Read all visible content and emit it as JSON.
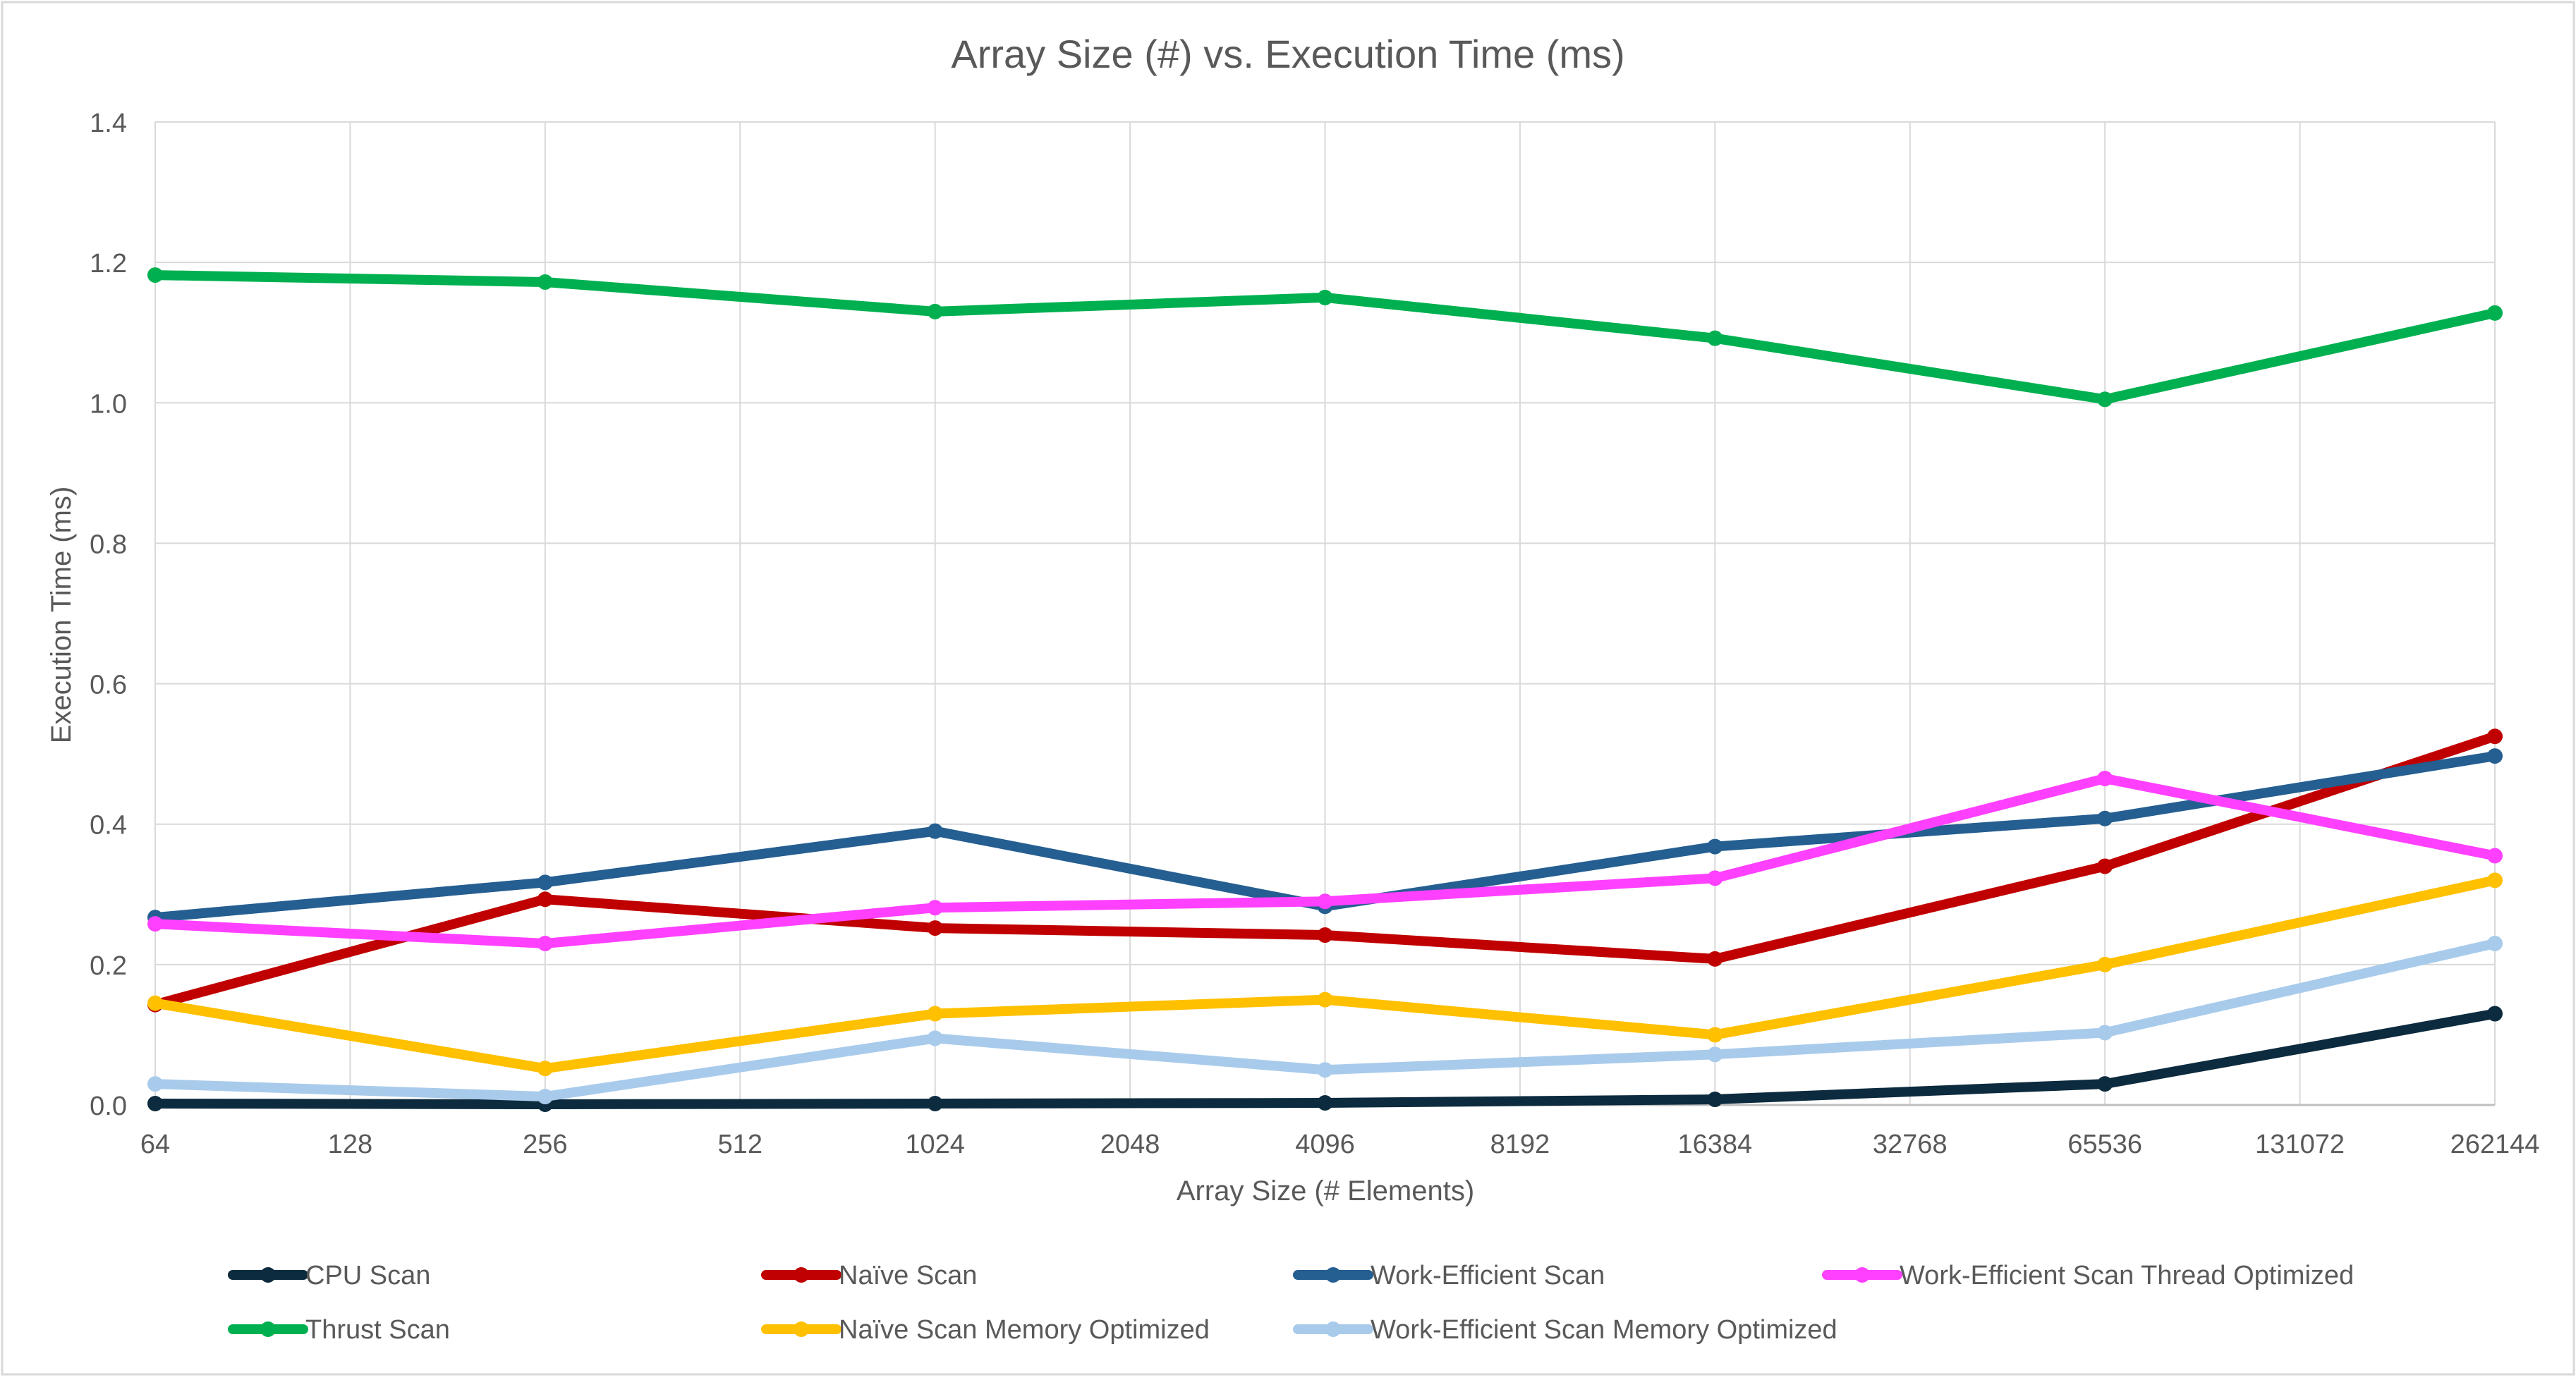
{
  "chart_data": {
    "type": "line",
    "title": "Array Size (#) vs. Execution Time (ms)",
    "xlabel": "Array Size (# Elements)",
    "ylabel": "Execution Time (ms)",
    "categories": [
      "64",
      "128",
      "256",
      "512",
      "1024",
      "2048",
      "4096",
      "8192",
      "16384",
      "32768",
      "65536",
      "131072",
      "262144"
    ],
    "ylim": [
      0,
      1.4
    ],
    "yticks": [
      "0.0",
      "0.2",
      "0.4",
      "0.6",
      "0.8",
      "1.0",
      "1.2",
      "1.4"
    ],
    "grid": true,
    "legend_position": "bottom",
    "series": [
      {
        "name": "CPU Scan",
        "color": "#0d2b3e",
        "x": [
          "64",
          "256",
          "1024",
          "4096",
          "16384",
          "65536",
          "262144"
        ],
        "values": [
          0.002,
          0.001,
          0.002,
          0.003,
          0.008,
          0.03,
          0.13
        ]
      },
      {
        "name": "Naïve Scan",
        "color": "#c00000",
        "x": [
          "64",
          "256",
          "1024",
          "4096",
          "16384",
          "65536",
          "262144"
        ],
        "values": [
          0.143,
          0.293,
          0.252,
          0.242,
          0.208,
          0.34,
          0.525
        ]
      },
      {
        "name": "Work-Efficient Scan",
        "color": "#255e91",
        "x": [
          "64",
          "256",
          "1024",
          "4096",
          "16384",
          "65536",
          "262144"
        ],
        "values": [
          0.267,
          0.317,
          0.39,
          0.283,
          0.368,
          0.408,
          0.497
        ]
      },
      {
        "name": "Work-Efficient Scan Thread Optimized",
        "color": "#ff40ff",
        "x": [
          "64",
          "256",
          "1024",
          "4096",
          "16384",
          "65536",
          "262144"
        ],
        "values": [
          0.258,
          0.23,
          0.281,
          0.29,
          0.323,
          0.465,
          0.355
        ]
      },
      {
        "name": "Thrust Scan",
        "color": "#00b050",
        "x": [
          "64",
          "256",
          "1024",
          "4096",
          "16384",
          "65536",
          "262144"
        ],
        "values": [
          1.182,
          1.172,
          1.13,
          1.15,
          1.092,
          1.005,
          1.128
        ]
      },
      {
        "name": "Naïve Scan Memory Optimized",
        "color": "#ffc000",
        "x": [
          "64",
          "256",
          "1024",
          "4096",
          "16384",
          "65536",
          "262144"
        ],
        "values": [
          0.145,
          0.052,
          0.13,
          0.15,
          0.1,
          0.2,
          0.32
        ]
      },
      {
        "name": "Work-Efficient Scan Memory Optimized",
        "color": "#a9cbeb",
        "x": [
          "64",
          "256",
          "1024",
          "4096",
          "16384",
          "65536",
          "262144"
        ],
        "values": [
          0.03,
          0.012,
          0.095,
          0.05,
          0.072,
          0.103,
          0.23
        ]
      }
    ]
  }
}
